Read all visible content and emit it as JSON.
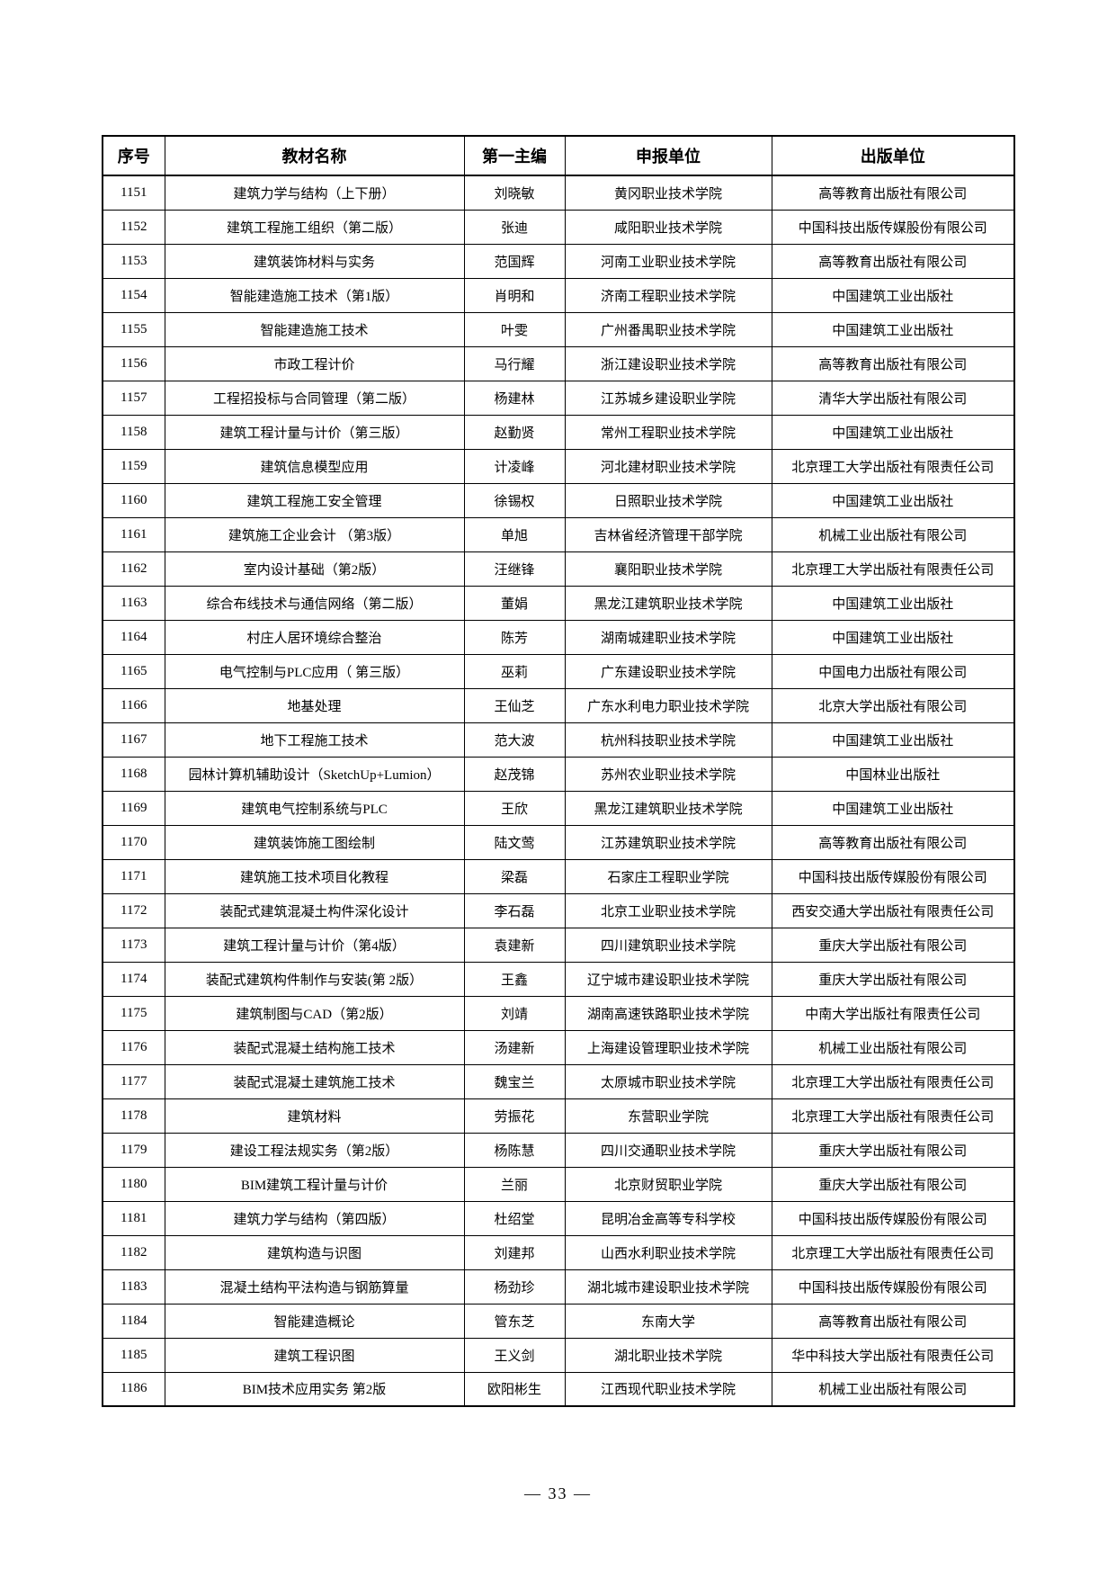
{
  "page": {
    "number_label": "— 33 —"
  },
  "table": {
    "columns": [
      "序号",
      "教材名称",
      "第一主编",
      "申报单位",
      "出版单位"
    ],
    "column_keys": [
      "serial",
      "title",
      "editor",
      "applicant",
      "publisher"
    ],
    "rows": [
      [
        "1151",
        "建筑力学与结构（上下册）",
        "刘晓敏",
        "黄冈职业技术学院",
        "高等教育出版社有限公司"
      ],
      [
        "1152",
        "建筑工程施工组织（第二版）",
        "张迪",
        "咸阳职业技术学院",
        "中国科技出版传媒股份有限公司"
      ],
      [
        "1153",
        "建筑装饰材料与实务",
        "范国辉",
        "河南工业职业技术学院",
        "高等教育出版社有限公司"
      ],
      [
        "1154",
        "智能建造施工技术（第1版）",
        "肖明和",
        "济南工程职业技术学院",
        "中国建筑工业出版社"
      ],
      [
        "1155",
        "智能建造施工技术",
        "叶雯",
        "广州番禺职业技术学院",
        "中国建筑工业出版社"
      ],
      [
        "1156",
        "市政工程计价",
        "马行耀",
        "浙江建设职业技术学院",
        "高等教育出版社有限公司"
      ],
      [
        "1157",
        "工程招投标与合同管理（第二版）",
        "杨建林",
        "江苏城乡建设职业学院",
        "清华大学出版社有限公司"
      ],
      [
        "1158",
        "建筑工程计量与计价（第三版）",
        "赵勤贤",
        "常州工程职业技术学院",
        "中国建筑工业出版社"
      ],
      [
        "1159",
        "建筑信息模型应用",
        "计凌峰",
        "河北建材职业技术学院",
        "北京理工大学出版社有限责任公司"
      ],
      [
        "1160",
        "建筑工程施工安全管理",
        "徐锡权",
        "日照职业技术学院",
        "中国建筑工业出版社"
      ],
      [
        "1161",
        "建筑施工企业会计 （第3版）",
        "单旭",
        "吉林省经济管理干部学院",
        "机械工业出版社有限公司"
      ],
      [
        "1162",
        "室内设计基础（第2版）",
        "汪继锋",
        "襄阳职业技术学院",
        "北京理工大学出版社有限责任公司"
      ],
      [
        "1163",
        "综合布线技术与通信网络（第二版）",
        "董娟",
        "黑龙江建筑职业技术学院",
        "中国建筑工业出版社"
      ],
      [
        "1164",
        "村庄人居环境综合整治",
        "陈芳",
        "湖南城建职业技术学院",
        "中国建筑工业出版社"
      ],
      [
        "1165",
        "电气控制与PLC应用（ 第三版）",
        "巫莉",
        "广东建设职业技术学院",
        "中国电力出版社有限公司"
      ],
      [
        "1166",
        "地基处理",
        "王仙芝",
        "广东水利电力职业技术学院",
        "北京大学出版社有限公司"
      ],
      [
        "1167",
        "地下工程施工技术",
        "范大波",
        "杭州科技职业技术学院",
        "中国建筑工业出版社"
      ],
      [
        "1168",
        "园林计算机辅助设计（SketchUp+Lumion）",
        "赵茂锦",
        "苏州农业职业技术学院",
        "中国林业出版社"
      ],
      [
        "1169",
        "建筑电气控制系统与PLC",
        "王欣",
        "黑龙江建筑职业技术学院",
        "中国建筑工业出版社"
      ],
      [
        "1170",
        "建筑装饰施工图绘制",
        "陆文莺",
        "江苏建筑职业技术学院",
        "高等教育出版社有限公司"
      ],
      [
        "1171",
        "建筑施工技术项目化教程",
        "梁磊",
        "石家庄工程职业学院",
        "中国科技出版传媒股份有限公司"
      ],
      [
        "1172",
        "装配式建筑混凝土构件深化设计",
        "李石磊",
        "北京工业职业技术学院",
        "西安交通大学出版社有限责任公司"
      ],
      [
        "1173",
        "建筑工程计量与计价（第4版）",
        "袁建新",
        "四川建筑职业技术学院",
        "重庆大学出版社有限公司"
      ],
      [
        "1174",
        "装配式建筑构件制作与安装(第 2版）",
        "王鑫",
        "辽宁城市建设职业技术学院",
        "重庆大学出版社有限公司"
      ],
      [
        "1175",
        "建筑制图与CAD（第2版）",
        "刘靖",
        "湖南高速铁路职业技术学院",
        "中南大学出版社有限责任公司"
      ],
      [
        "1176",
        "装配式混凝土结构施工技术",
        "汤建新",
        "上海建设管理职业技术学院",
        "机械工业出版社有限公司"
      ],
      [
        "1177",
        "装配式混凝土建筑施工技术",
        "魏宝兰",
        "太原城市职业技术学院",
        "北京理工大学出版社有限责任公司"
      ],
      [
        "1178",
        "建筑材料",
        "劳振花",
        "东营职业学院",
        "北京理工大学出版社有限责任公司"
      ],
      [
        "1179",
        "建设工程法规实务（第2版）",
        "杨陈慧",
        "四川交通职业技术学院",
        "重庆大学出版社有限公司"
      ],
      [
        "1180",
        "BIM建筑工程计量与计价",
        "兰丽",
        "北京财贸职业学院",
        "重庆大学出版社有限公司"
      ],
      [
        "1181",
        "建筑力学与结构（第四版）",
        "杜绍堂",
        "昆明冶金高等专科学校",
        "中国科技出版传媒股份有限公司"
      ],
      [
        "1182",
        "建筑构造与识图",
        "刘建邦",
        "山西水利职业技术学院",
        "北京理工大学出版社有限责任公司"
      ],
      [
        "1183",
        "混凝土结构平法构造与钢筋算量",
        "杨劲珍",
        "湖北城市建设职业技术学院",
        "中国科技出版传媒股份有限公司"
      ],
      [
        "1184",
        "智能建造概论",
        "管东芝",
        "东南大学",
        "高等教育出版社有限公司"
      ],
      [
        "1185",
        "建筑工程识图",
        "王义剑",
        "湖北职业技术学院",
        "华中科技大学出版社有限责任公司"
      ],
      [
        "1186",
        "BIM技术应用实务 第2版",
        "欧阳彬生",
        "江西现代职业技术学院",
        "机械工业出版社有限公司"
      ]
    ]
  }
}
